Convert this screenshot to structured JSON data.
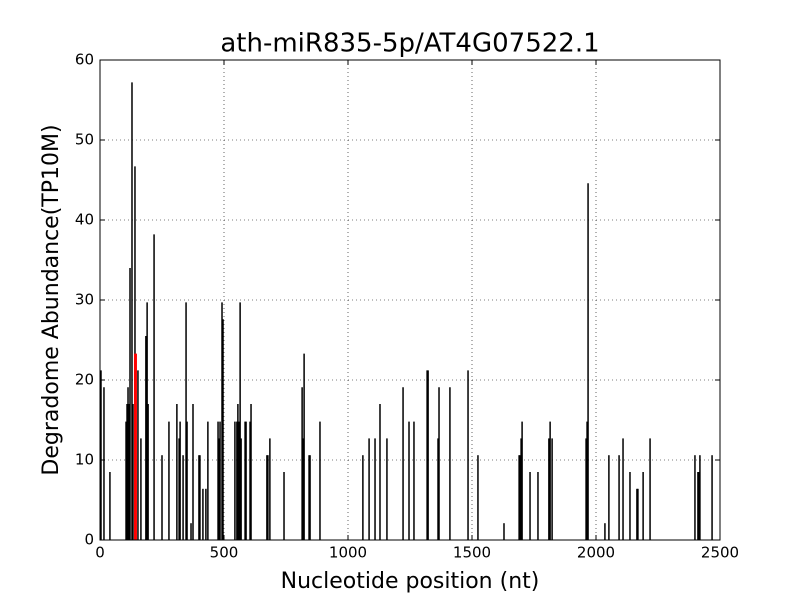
{
  "chart_data": {
    "type": "vlines",
    "title": "ath-miR835-5p/AT4G07522.1",
    "x_label": "Nucleotide position (nt)",
    "y_label": "Degradome Abundance(TP10M)",
    "xlim": [
      0,
      2500
    ],
    "xticks": [
      0,
      500,
      1000,
      1500,
      2000,
      2500
    ],
    "ylim": [
      0,
      60
    ],
    "yticks": [
      0,
      10,
      20,
      30,
      40,
      50,
      60
    ],
    "grid": true,
    "series": [
      {
        "color": "#000000",
        "x": [
          4,
          16,
          40,
          105,
          109,
          113,
          117,
          121,
          129,
          133,
          141,
          153,
          165,
          185,
          190,
          194,
          218,
          250,
          278,
          310,
          319,
          323,
          335,
          347,
          351,
          367,
          375,
          399,
          403,
          415,
          427,
          435,
          476,
          480,
          484,
          492,
          496,
          544,
          552,
          556,
          560,
          565,
          569,
          585,
          589,
          605,
          609,
          673,
          677,
          685,
          742,
          815,
          819,
          823,
          843,
          847,
          887,
          1060,
          1085,
          1109,
          1129,
          1157,
          1222,
          1246,
          1266,
          1319,
          1323,
          1363,
          1367,
          1411,
          1484,
          1524,
          1629,
          1690,
          1694,
          1698,
          1702,
          1734,
          1766,
          1810,
          1815,
          1823,
          1960,
          1964,
          1968,
          2036,
          2052,
          2093,
          2109,
          2137,
          2165,
          2169,
          2190,
          2218,
          2399,
          2411,
          2415,
          2419,
          2468
        ],
        "values": [
          21.2,
          19.1,
          8.5,
          14.8,
          17,
          19.1,
          17,
          34,
          57.2,
          17,
          46.7,
          21.2,
          12.7,
          25.5,
          29.7,
          17,
          38.2,
          10.6,
          14.8,
          17,
          12.7,
          14.8,
          10.6,
          29.7,
          14.8,
          2.1,
          17,
          10.6,
          10.6,
          6.4,
          6.4,
          14.8,
          14.8,
          12.7,
          14.8,
          29.7,
          27.6,
          14.8,
          14.8,
          17,
          14.8,
          29.7,
          12.7,
          14.8,
          14.8,
          14.8,
          17,
          10.6,
          10.6,
          12.7,
          8.5,
          19.1,
          12.7,
          23.3,
          10.6,
          10.6,
          14.8,
          10.6,
          12.7,
          12.7,
          17,
          12.7,
          19.1,
          14.8,
          14.8,
          21.2,
          21.2,
          12.7,
          19.1,
          19.1,
          21.2,
          10.6,
          2.1,
          10.6,
          10.6,
          12.7,
          14.8,
          8.5,
          8.5,
          12.7,
          14.8,
          12.7,
          12.7,
          14.8,
          44.6,
          2.1,
          10.6,
          10.6,
          12.7,
          8.5,
          6.4,
          6.4,
          8.5,
          12.7,
          10.6,
          8.5,
          8.5,
          10.6,
          10.6
        ]
      },
      {
        "color": "#ff0000",
        "x": [
          143
        ],
        "values": [
          23.3
        ]
      }
    ]
  }
}
